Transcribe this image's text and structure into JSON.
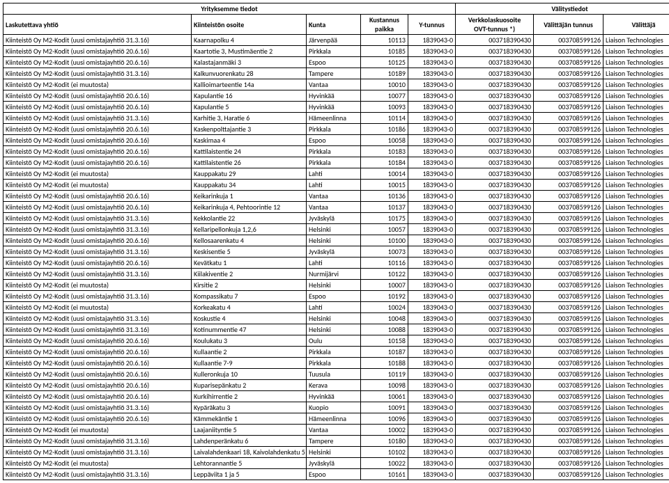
{
  "header": {
    "group1": "Yrityksemme tiedot",
    "group2": "Välitystiedot",
    "cols": {
      "company": "Laskutettava yhtiö",
      "address": "Kiinteistön osoite",
      "kunta": "Kunta",
      "kust_line1": "Kustannus",
      "kust_line2": "paikka",
      "ytunnus": "Y-tunnus",
      "ovt_line1": "Verkkolaskuosoite",
      "ovt_line2": "OVT-tunnus *)",
      "vtun": "Välittäjän tunnus",
      "valittaja": "Välittäjä"
    }
  },
  "defaults": {
    "ytunnus": "1839043-0",
    "ytunnus_alt": "1839043-0",
    "ovt": "003718390430",
    "vtun": "003708599126",
    "valittaja": "Liaison Technologies"
  },
  "rows": [
    {
      "c": "Kiinteistö Oy M2-Kodit   (uusi omistajayhtiö 31.3.16)",
      "a": "Kaarnapolku 4",
      "k": "Järvenpää",
      "kp": "10113"
    },
    {
      "c": "Kiinteistö Oy M2-Kodit   (uusi omistajayhtiö 20.6.16)",
      "a": "Kaartotie 3, Mustimäentie 2",
      "k": "Pirkkala",
      "kp": "10185"
    },
    {
      "c": "Kiinteistö Oy M2-Kodit   (uusi omistajayhtiö 20.6.16)",
      "a": "Kalastajanmäki 3",
      "k": "Espoo",
      "kp": "10125"
    },
    {
      "c": "Kiinteistö Oy M2-Kodit   (uusi omistajayhtiö 31.3.16)",
      "a": "Kalkunvuorenkatu 28",
      "k": "Tampere",
      "kp": "10189"
    },
    {
      "c": "Kiinteistö Oy M2-Kodit   (ei muutosta)",
      "a": "Kallioimarteentie 14a",
      "k": "Vantaa",
      "kp": "10010"
    },
    {
      "c": "Kiinteistö Oy M2-Kodit   (uusi omistajayhtiö 20.6.16)",
      "a": "Kapulantie 16",
      "k": "Hyvinkää",
      "kp": "10077"
    },
    {
      "c": "Kiinteistö Oy M2-Kodit   (uusi omistajayhtiö 20.6.16)",
      "a": "Kapulantie 5",
      "k": "Hyvinkää",
      "kp": "10093"
    },
    {
      "c": "Kiinteistö Oy M2-Kodit   (uusi omistajayhtiö 31.3.16)",
      "a": "Karhitie 3, Haratie 6",
      "k": "Hämeenlinna",
      "kp": "10114"
    },
    {
      "c": "Kiinteistö Oy M2-Kodit   (uusi omistajayhtiö 20.6.16)",
      "a": "Kaskenpolttajantie 3",
      "k": "Pirkkala",
      "kp": "10186"
    },
    {
      "c": "Kiinteistö Oy M2-Kodit   (uusi omistajayhtiö 20.6.16)",
      "a": "Kaskimaa 4",
      "k": "Espoo",
      "kp": "10058"
    },
    {
      "c": "Kiinteistö Oy M2-Kodit   (uusi omistajayhtiö 20.6.16)",
      "a": "Kattilaistentie 24",
      "k": "Pirkkala",
      "kp": "10183"
    },
    {
      "c": "Kiinteistö Oy M2-Kodit   (uusi omistajayhtiö 20.6.16)",
      "a": "Kattilaistentie 26",
      "k": "Pirkkala",
      "kp": "10184"
    },
    {
      "c": "Kiinteistö Oy M2-Kodit   (ei muutosta)",
      "a": "Kauppakatu 29",
      "k": "Lahti",
      "kp": "10014"
    },
    {
      "c": "Kiinteistö Oy M2-Kodit   (ei muutosta)",
      "a": "Kauppakatu 34",
      "k": "Lahti",
      "kp": "10015"
    },
    {
      "c": "Kiinteistö Oy M2-Kodit   (uusi omistajayhtiö 20.6.16)",
      "a": "Keikarinkuja 1",
      "k": "Vantaa",
      "kp": "10136"
    },
    {
      "c": "Kiinteistö Oy M2-Kodit   (uusi omistajayhtiö 20.6.16)",
      "a": "Keikarinkuja 4, Pehtoorintie 12",
      "k": "Vantaa",
      "kp": "10137"
    },
    {
      "c": "Kiinteistö Oy M2-Kodit   (uusi omistajayhtiö 31.3.16)",
      "a": "Kekkolantie 22",
      "k": "Jyväskylä",
      "kp": "10175"
    },
    {
      "c": "Kiinteistö Oy M2-Kodit   (uusi omistajayhtiö 31.3.16)",
      "a": "Kellaripellonkuja 1,2,6",
      "k": "Helsinki",
      "kp": "10057"
    },
    {
      "c": "Kiinteistö Oy M2-Kodit   (uusi omistajayhtiö 20.6.16)",
      "a": "Kellosaarenkatu 4",
      "k": "Helsinki",
      "kp": "10100"
    },
    {
      "c": "Kiinteistö Oy M2-Kodit   (uusi omistajayhtiö 31.3.16)",
      "a": "Keskisentie 5",
      "k": "Jyväskylä",
      "kp": "10073"
    },
    {
      "c": "Kiinteistö Oy M2-Kodit   (uusi omistajayhtiö 20.6.16)",
      "a": "Kevätkatu 1",
      "k": "Lahti",
      "kp": "10116"
    },
    {
      "c": "Kiinteistö Oy M2-Kodit   (uusi omistajayhtiö 31.3.16)",
      "a": "Kiilakiventie 2",
      "k": "Nurmijärvi",
      "kp": "10122"
    },
    {
      "c": "Kiinteistö Oy M2-Kodit   (ei muutosta)",
      "a": "Kirsitie 2",
      "k": "Helsinki",
      "kp": "10007"
    },
    {
      "c": "Kiinteistö Oy M2-Kodit   (uusi omistajayhtiö 31.3.16)",
      "a": "Kompassikatu 7",
      "k": "Espoo",
      "kp": "10192"
    },
    {
      "c": "Kiinteistö Oy M2-Kodit   (ei muutosta)",
      "a": "Korkeakatu 4",
      "k": "Lahti",
      "kp": "10024"
    },
    {
      "c": "Kiinteistö Oy M2-Kodit   (uusi omistajayhtiö 31.3.16)",
      "a": "Koskustie 4",
      "k": "Helsinki",
      "kp": "10048"
    },
    {
      "c": "Kiinteistö Oy M2-Kodit   (uusi omistajayhtiö 31.3.16)",
      "a": "Kotinummentie 47",
      "k": "Helsinki",
      "kp": "10088"
    },
    {
      "c": "Kiinteistö Oy M2-Kodit   (uusi omistajayhtiö 20.6.16)",
      "a": "Koulukatu 3",
      "k": "Oulu",
      "kp": "10158",
      "yt": "1839043-0"
    },
    {
      "c": "Kiinteistö Oy M2-Kodit   (uusi omistajayhtiö 20.6.16)",
      "a": "Kullaantie 2",
      "k": "Pirkkala",
      "kp": "10187"
    },
    {
      "c": "Kiinteistö Oy M2-Kodit   (uusi omistajayhtiö 20.6.16)",
      "a": "Kullaantie 7-9",
      "k": "Pirkkala",
      "kp": "10188"
    },
    {
      "c": "Kiinteistö Oy M2-Kodit   (uusi omistajayhtiö 20.6.16)",
      "a": "Kulleronkuja 10",
      "k": "Tuusula",
      "kp": "10119"
    },
    {
      "c": "Kiinteistö Oy M2-Kodit   (uusi omistajayhtiö 20.6.16)",
      "a": "Kuparisepänkatu 2",
      "k": "Kerava",
      "kp": "10098"
    },
    {
      "c": "Kiinteistö Oy M2-Kodit   (uusi omistajayhtiö 20.6.16)",
      "a": "Kurkihirrentie 2",
      "k": "Hyvinkää",
      "kp": "10061"
    },
    {
      "c": "Kiinteistö Oy M2-Kodit   (uusi omistajayhtiö 31.3.16)",
      "a": "Kypäräkatu 3",
      "k": "Kuopio",
      "kp": "10091"
    },
    {
      "c": "Kiinteistö Oy M2-Kodit   (uusi omistajayhtiö 20.6.16)",
      "a": "Kämmekäntie 1",
      "k": "Hämeenlinna",
      "kp": "10096"
    },
    {
      "c": "Kiinteistö Oy M2-Kodit   (ei muutosta)",
      "a": "Laajaniityntie 5",
      "k": "Vantaa",
      "kp": "10002"
    },
    {
      "c": "Kiinteistö Oy M2-Kodit   (uusi omistajayhtiö 31.3.16)",
      "a": "Lahdenperänkatu 6",
      "k": "Tampere",
      "kp": "10180"
    },
    {
      "c": "Kiinteistö Oy M2-Kodit   (uusi omistajayhtiö 31.3.16)",
      "a": "Laivalahdenkaari 18, Kaivolahdenkatu 5",
      "k": "Helsinki",
      "kp": "10102"
    },
    {
      "c": "Kiinteistö Oy M2-Kodit   (ei muutosta)",
      "a": "Lehtorannantie 5",
      "k": "Jyväskylä",
      "kp": "10022"
    },
    {
      "c": "Kiinteistö Oy M2-Kodit   (uusi omistajayhtiö 31.3.16)",
      "a": "Leppäviita 1 ja 5",
      "k": "Espoo",
      "kp": "10161"
    }
  ]
}
